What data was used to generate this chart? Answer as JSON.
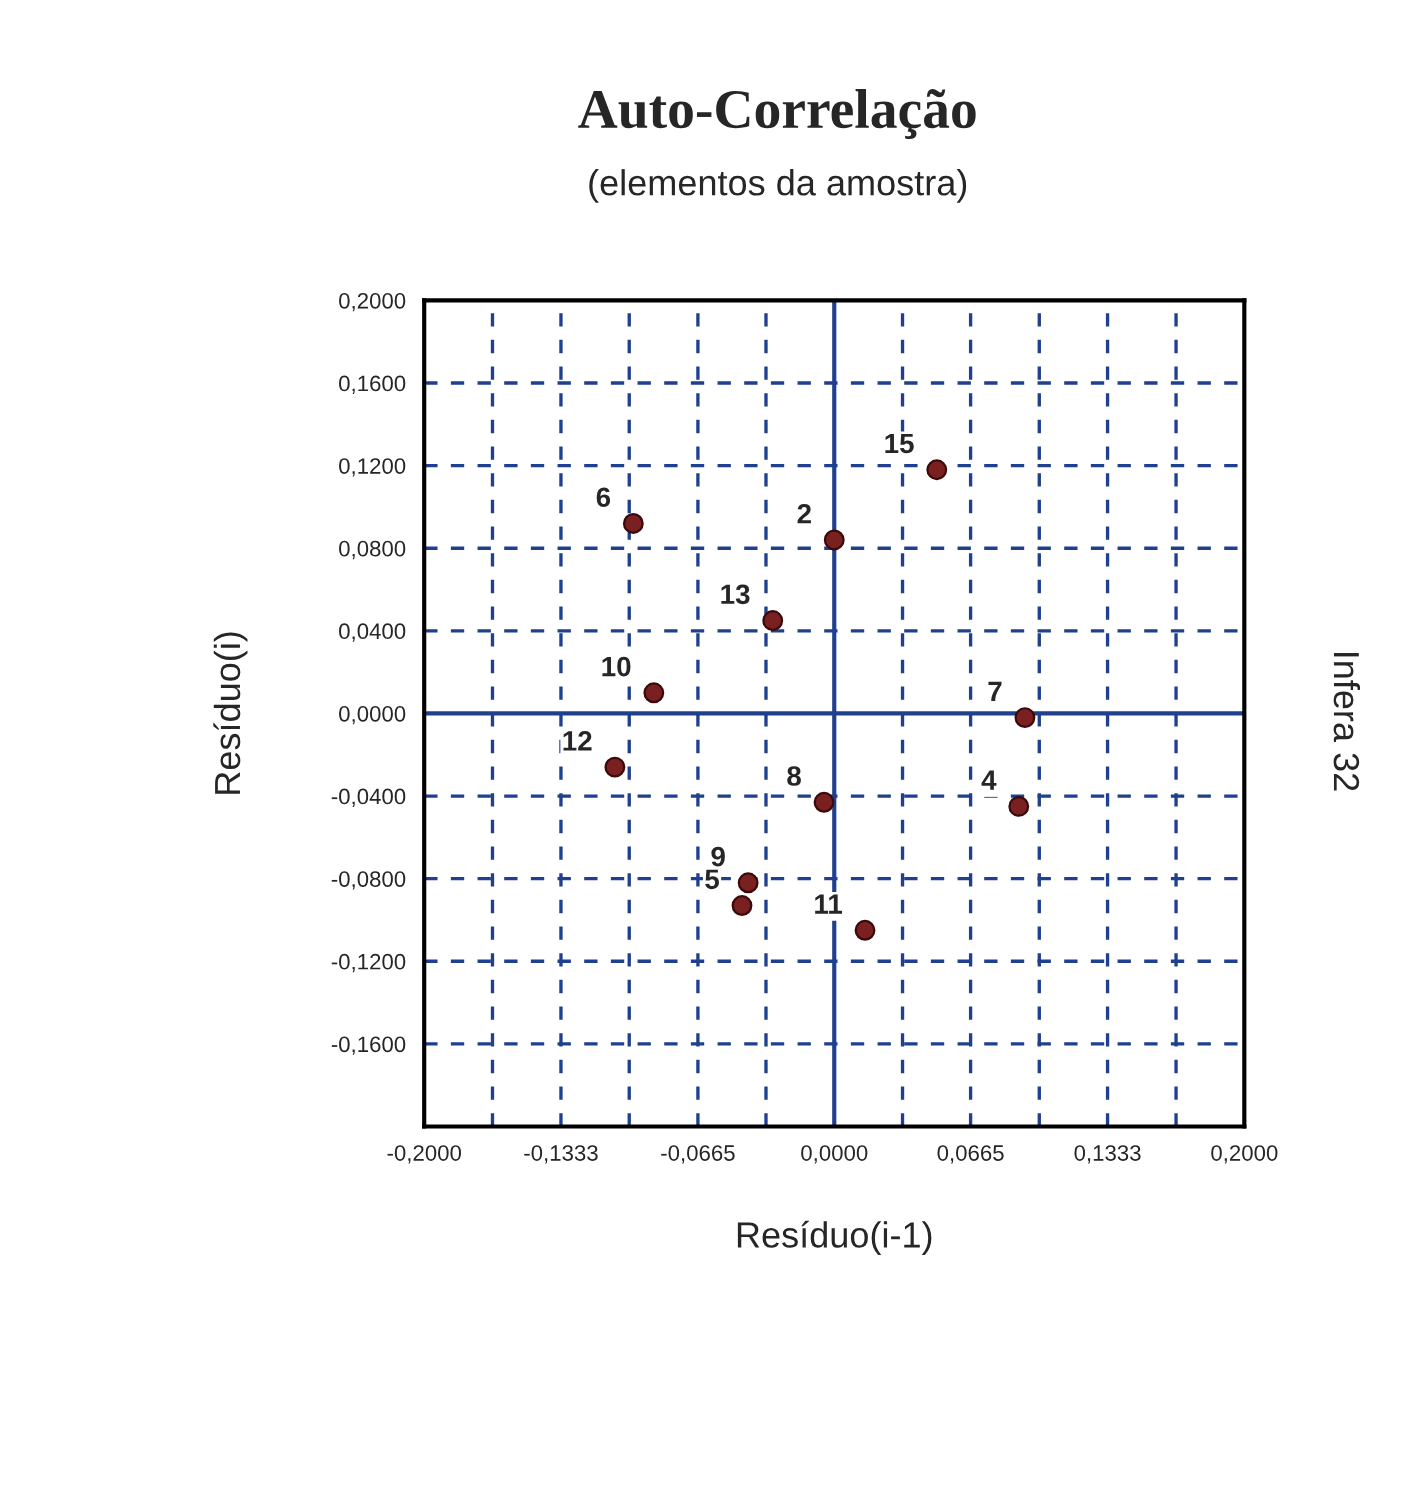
{
  "chart_data": {
    "type": "scatter",
    "title": "Auto-Correlação",
    "subtitle": "(elementos da amostra)",
    "xlabel": "Resíduo(i-1)",
    "ylabel": "Resíduo(i)",
    "x": [
      -0.098,
      0.0,
      -0.03,
      -0.088,
      -0.107,
      0.05,
      0.093,
      0.09,
      -0.005,
      -0.042,
      -0.045,
      0.015
    ],
    "series": [
      {
        "color": "#7a2020",
        "values": [
          0.092,
          0.084,
          0.045,
          0.01,
          -0.026,
          0.118,
          -0.002,
          -0.045,
          -0.043,
          -0.082,
          -0.093,
          -0.105
        ]
      }
    ],
    "marker": "circle",
    "xlim": [
      -0.2,
      0.2
    ],
    "ylim": [
      -0.2,
      0.2
    ],
    "xticks": [
      {
        "value": -0.2,
        "label": "-0,2000"
      },
      {
        "value": -0.1667,
        "label": null
      },
      {
        "value": -0.1333,
        "label": "-0,1333"
      },
      {
        "value": -0.1,
        "label": null
      },
      {
        "value": -0.0665,
        "label": "-0,0665"
      },
      {
        "value": -0.0333,
        "label": null
      },
      {
        "value": 0,
        "label": "0,0000"
      },
      {
        "value": 0.0333,
        "label": null
      },
      {
        "value": 0.0665,
        "label": "0,0665"
      },
      {
        "value": 0.1,
        "label": null
      },
      {
        "value": 0.1333,
        "label": "0,1333"
      },
      {
        "value": 0.1667,
        "label": null
      },
      {
        "value": 0.2,
        "label": "0,2000"
      }
    ],
    "yticks": [
      {
        "value": -0.2,
        "label": null
      },
      {
        "value": -0.16,
        "label": "-0,1600"
      },
      {
        "value": -0.12,
        "label": "-0,1200"
      },
      {
        "value": -0.08,
        "label": "-0,0800"
      },
      {
        "value": -0.04,
        "label": "-0,0400"
      },
      {
        "value": 0,
        "label": "0,0000"
      },
      {
        "value": 0.04,
        "label": "0,0400"
      },
      {
        "value": 0.08,
        "label": "0,0800"
      },
      {
        "value": 0.12,
        "label": "0,1200"
      },
      {
        "value": 0.16,
        "label": "0,1600"
      },
      {
        "value": 0.2,
        "label": "0,2000"
      }
    ],
    "grid": true,
    "annotations": [
      {
        "text": "6",
        "x": -0.098,
        "y": 0.092
      },
      {
        "text": "2",
        "x": 0.0,
        "y": 0.084
      },
      {
        "text": "13",
        "x": -0.03,
        "y": 0.045
      },
      {
        "text": "10",
        "x": -0.088,
        "y": 0.01
      },
      {
        "text": "12",
        "x": -0.107,
        "y": -0.026
      },
      {
        "text": "15",
        "x": 0.05,
        "y": 0.118
      },
      {
        "text": "7",
        "x": 0.093,
        "y": -0.002
      },
      {
        "text": "4",
        "x": 0.09,
        "y": -0.045
      },
      {
        "text": "8",
        "x": -0.005,
        "y": -0.043
      },
      {
        "text": "9",
        "x": -0.042,
        "y": -0.082
      },
      {
        "text": "5",
        "x": -0.045,
        "y": -0.093
      },
      {
        "text": "11",
        "x": 0.015,
        "y": -0.105
      },
      "Infera 32"
    ]
  }
}
